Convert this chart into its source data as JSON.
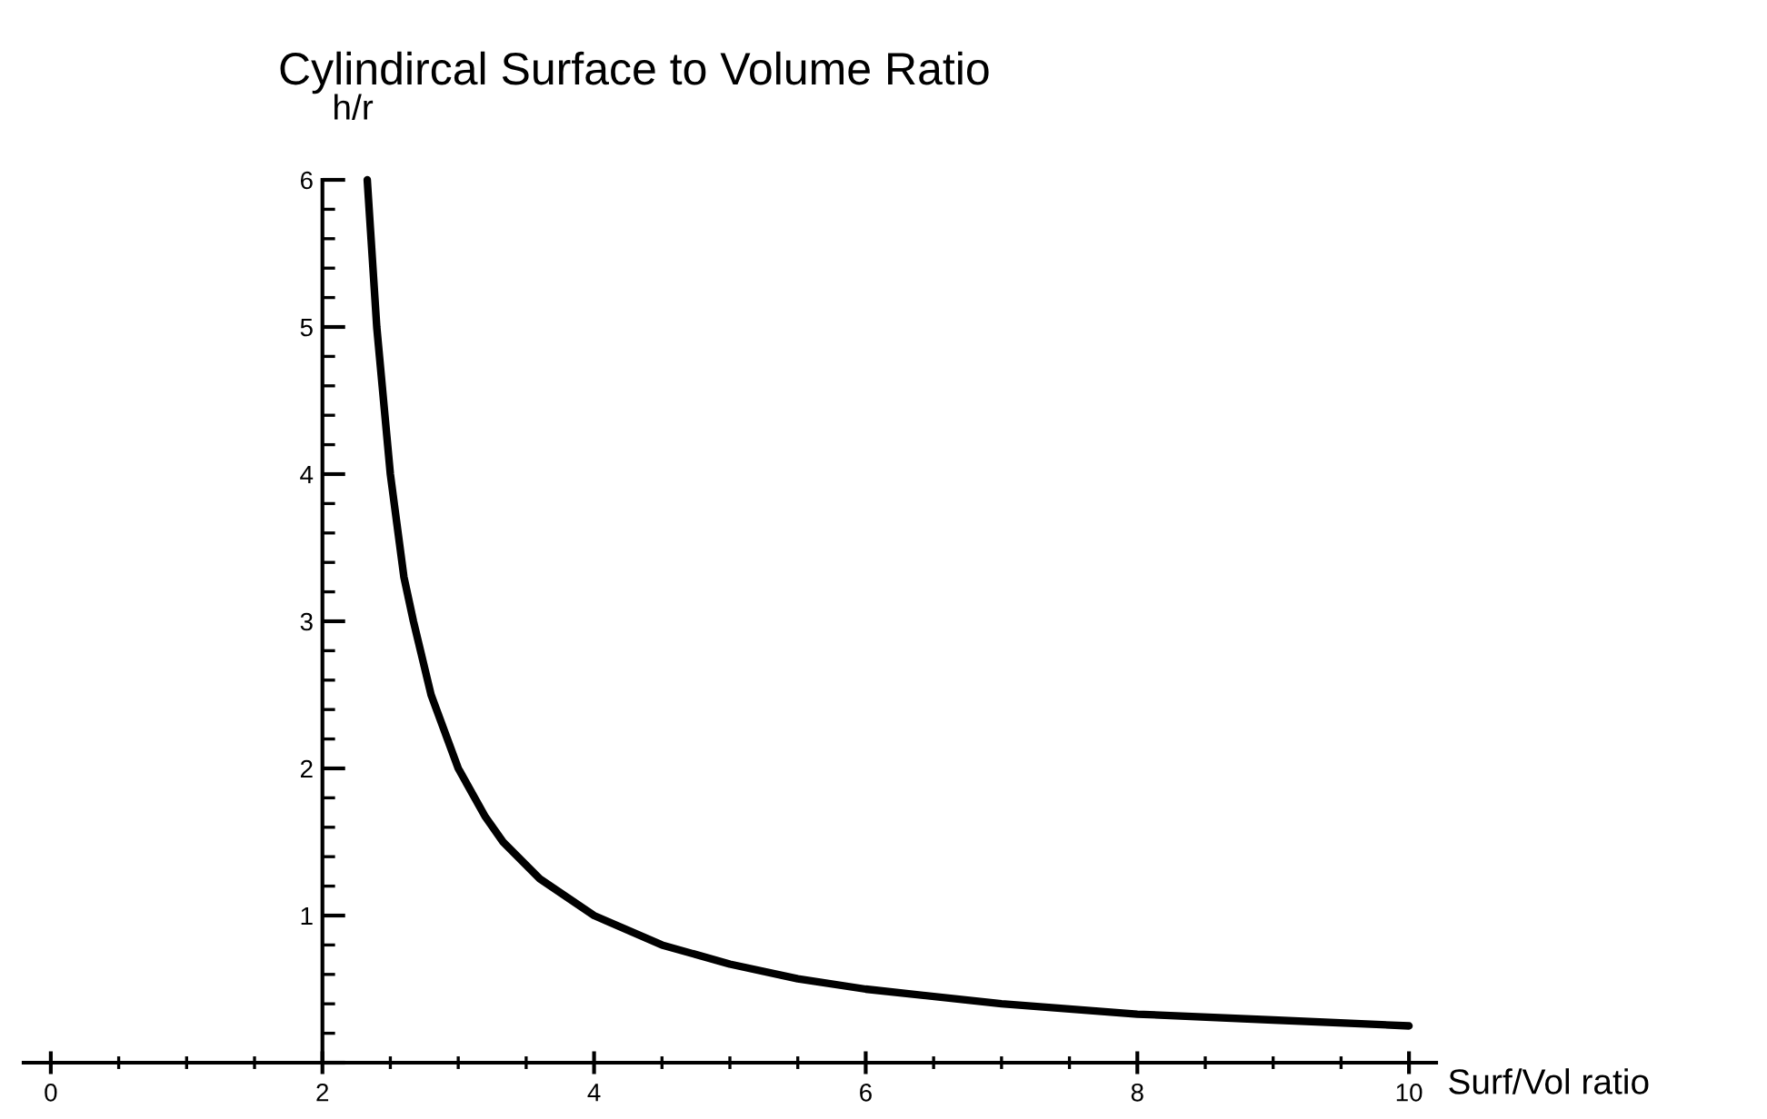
{
  "chart_data": {
    "type": "line",
    "title": "Cylindircal Surface to Volume Ratio",
    "xlabel": "Surf/Vol ratio",
    "ylabel": "h/r",
    "x": [
      2.33,
      2.4,
      2.5,
      2.6,
      2.67,
      2.8,
      3,
      3.2,
      3.33,
      3.6,
      4,
      4.5,
      5,
      5.5,
      6,
      7,
      8,
      9,
      10
    ],
    "series": [
      {
        "color": "#000000",
        "values": [
          6,
          5,
          4,
          3.3,
          3,
          2.5,
          2,
          1.67,
          1.5,
          1.25,
          1,
          0.8,
          0.67,
          0.57,
          0.5,
          0.4,
          0.33,
          0.29,
          0.25
        ]
      }
    ],
    "xlim": [
      -0.2,
      10.2
    ],
    "ylim": [
      0,
      6
    ],
    "xticks": [
      0,
      2,
      4,
      6,
      8,
      10
    ],
    "yticks": [
      {
        "value": 0,
        "label": null
      },
      1,
      2,
      3,
      4,
      5,
      6
    ],
    "grid": false,
    "legend": false,
    "marker": "none",
    "line_style": "solid"
  }
}
